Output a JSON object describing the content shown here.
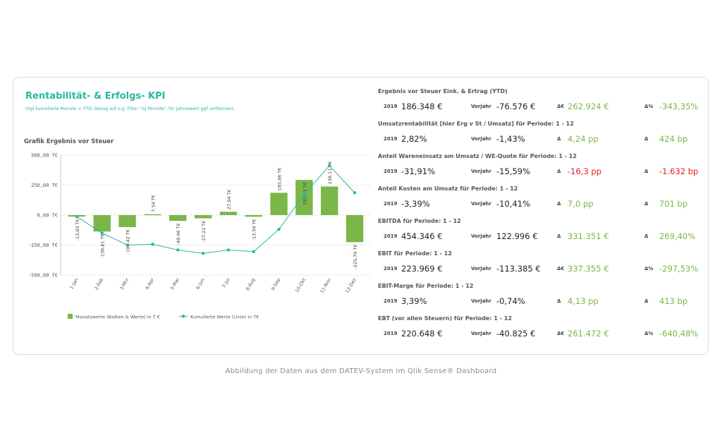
{
  "title": "Rentabilität- & Erfolgs- KPI",
  "subtitle": "(Vgl kumulierte Monate = YTD; Bezug auf o.g. Filter \"GJ Periode\", für Jahreswert ggf. entfernen):",
  "chart_title": "Grafik Ergebnis vor Steuer",
  "caption": "Abbildung der Daten aus dem DATEV-System im Qlik Sense® Dashboard",
  "colors": {
    "accent": "#29b8a1",
    "bar": "#7ab648",
    "line": "#29b8a1",
    "positive": "#7ab648",
    "negative": "#e02020"
  },
  "chart_data": {
    "type": "bar",
    "title": "Grafik Ergebnis vor Steuer",
    "categories": [
      "1-Jan",
      "2-Feb",
      "3-Mrz",
      "4-Apr",
      "5-Mai",
      "6-Jun",
      "7-Jul",
      "8-Aug",
      "9-Sep",
      "10-Okt",
      "11-Nov",
      "12-Dez"
    ],
    "series": [
      {
        "name": "Monatswerte (Balken & Werte) in T €",
        "type": "bar",
        "values": [
          -13.03,
          -136.81,
          -100.42,
          7.54,
          -48.46,
          -27.22,
          27.94,
          -13.59,
          185.86,
          293.43,
          238.11,
          -225.79
        ],
        "labels": [
          "-13,03 T€",
          "-136,81 T€",
          "-100,42 T€",
          "7,54 T€",
          "-48,46 T€",
          "-27,22 T€",
          "27,94 T€",
          "-13,59 T€",
          "185,86 T€",
          "293,43 T€",
          "238,11 T€",
          "-225,79 T€"
        ]
      },
      {
        "name": "Kumulierte Werte (Linie) in T€",
        "type": "line",
        "values": [
          -13,
          -150,
          -250,
          -243,
          -291,
          -319,
          -291,
          -305,
          -119,
          174,
          412,
          186
        ]
      }
    ],
    "yticks": [
      500,
      250,
      0,
      -250,
      -500
    ],
    "ytick_labels": [
      "500,00 T€",
      "250,00 T€",
      "0,00 T€",
      "-250,00 T€",
      "-500,00 T€"
    ],
    "ylim": [
      -500,
      500
    ],
    "grid": true,
    "legend_position": "bottom-left"
  },
  "kpis": [
    {
      "title": "Ergebnis vor Steuer Eink. & Ertrag (YTD)",
      "year": "2019",
      "value": "186.348 €",
      "vj_label": "Vorjahr",
      "vj_value": "-76.576 €",
      "d1_label": "Δ€",
      "d1_value": "262.924 €",
      "d1_class": "pos",
      "d2_label": "Δ%",
      "d2_value": "-343,35%",
      "d2_class": "pos"
    },
    {
      "title": "Umsatzrentabilität [hier Erg v St / Umsatz] für Periode: 1 - 12",
      "year": "2019",
      "value": "2,82%",
      "vj_label": "Vorjahr",
      "vj_value": "-1,43%",
      "d1_label": "Δ",
      "d1_value": "4,24 pp",
      "d1_class": "pos",
      "d2_label": "Δ",
      "d2_value": "424 bp",
      "d2_class": "pos"
    },
    {
      "title": "Anteil Wareneinsatz am Umsatz / WE-Quote für Periode: 1 - 12",
      "year": "2019",
      "value": "-31,91%",
      "vj_label": "Vorjahr",
      "vj_value": "-15,59%",
      "d1_label": "Δ",
      "d1_value": "-16,3 pp",
      "d1_class": "neg",
      "d2_label": "Δ",
      "d2_value": "-1.632 bp",
      "d2_class": "neg"
    },
    {
      "title": "Anteil Kosten am Umsatz für Periode: 1 - 12",
      "year": "2019",
      "value": "-3,39%",
      "vj_label": "Vorjahr",
      "vj_value": "-10,41%",
      "d1_label": "Δ",
      "d1_value": "7,0 pp",
      "d1_class": "pos",
      "d2_label": "Δ",
      "d2_value": "701 bp",
      "d2_class": "pos"
    },
    {
      "title": "EBITDA für Periode: 1 - 12",
      "year": "2019",
      "value": "454.346 €",
      "vj_label": "Vorjahr",
      "vj_value": "122.996 €",
      "d1_label": "Δ",
      "d1_value": "331.351 €",
      "d1_class": "pos",
      "d2_label": "Δ",
      "d2_value": "269,40%",
      "d2_class": "pos"
    },
    {
      "title": "EBIT für Periode: 1 - 12",
      "year": "2019",
      "value": "223.969 €",
      "vj_label": "Vorjahr",
      "vj_value": "-113.385 €",
      "d1_label": "Δ€",
      "d1_value": "337.355 €",
      "d1_class": "pos",
      "d2_label": "Δ%",
      "d2_value": "-297,53%",
      "d2_class": "pos"
    },
    {
      "title": "EBIT-Marge für Periode: 1 - 12",
      "year": "2019",
      "value": "3,39%",
      "vj_label": "Vorjahr",
      "vj_value": "-0,74%",
      "d1_label": "Δ",
      "d1_value": "4,13 pp",
      "d1_class": "pos",
      "d2_label": "Δ",
      "d2_value": "413 bp",
      "d2_class": "pos"
    },
    {
      "title": "EBT (vor allen Steuern) für Periode: 1 - 12",
      "year": "2019",
      "value": "220.648 €",
      "vj_label": "Vorjahr",
      "vj_value": "-40.825 €",
      "d1_label": "Δ€",
      "d1_value": "261.472 €",
      "d1_class": "pos",
      "d2_label": "Δ%",
      "d2_value": "-640,48%",
      "d2_class": "pos"
    }
  ]
}
